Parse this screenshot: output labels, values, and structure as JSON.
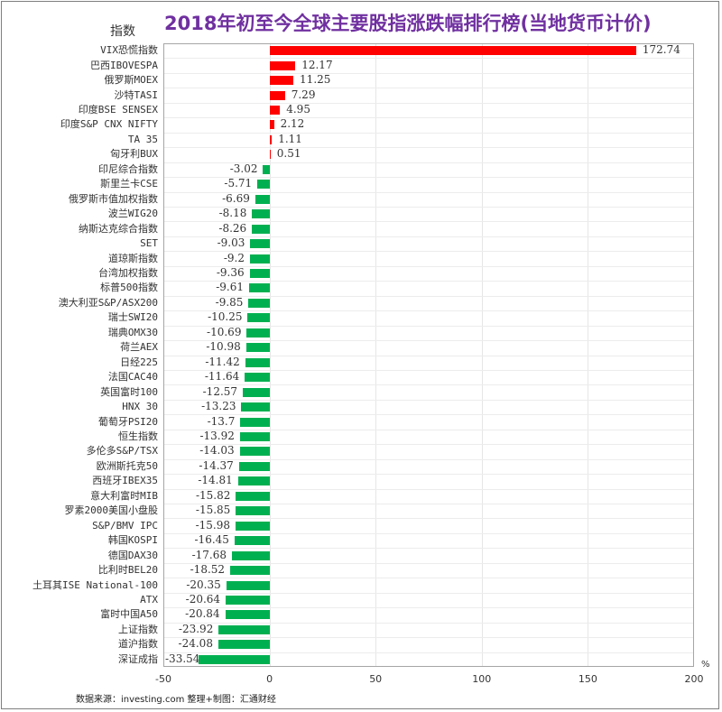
{
  "chart_data": {
    "type": "bar",
    "orientation": "horizontal",
    "title": "2018年初至今全球主要股指涨跌幅排行榜(当地货币计价)",
    "ylabel": "指数",
    "xlabel": "%",
    "xlim": [
      -50,
      200
    ],
    "xticks": [
      -50,
      0,
      50,
      100,
      150,
      200
    ],
    "grid": true,
    "legend": null,
    "colors": {
      "positive": "#ff0000",
      "negative": "#00b050"
    },
    "categories": [
      "VIX恐慌指数",
      "巴西IBOVESPA",
      "俄罗斯MOEX",
      "沙特TASI",
      "印度BSE SENSEX",
      "印度S&P CNX NIFTY",
      "TA 35",
      "匈牙利BUX",
      "印尼综合指数",
      "斯里兰卡CSE",
      "俄罗斯市值加权指数",
      "波兰WIG20",
      "纳斯达克综合指数",
      "SET",
      "道琼斯指数",
      "台湾加权指数",
      "标普500指数",
      "澳大利亚S&P/ASX200",
      "瑞士SWI20",
      "瑞典OMX30",
      "荷兰AEX",
      "日经225",
      "法国CAC40",
      "英国富时100",
      "HNX 30",
      "葡萄牙PSI20",
      "恒生指数",
      "多伦多S&P/TSX",
      "欧洲斯托克50",
      "西班牙IBEX35",
      "意大利富时MIB",
      "罗素2000美国小盘股",
      "S&P/BMV IPC",
      "韩国KOSPI",
      "德国DAX30",
      "比利时BEL20",
      "土耳其ISE National-100",
      "ATX",
      "富时中国A50",
      "上证指数",
      "道沪指数",
      "深证成指"
    ],
    "values": [
      172.74,
      12.17,
      11.25,
      7.29,
      4.95,
      2.12,
      1.11,
      0.51,
      -3.02,
      -5.71,
      -6.69,
      -8.18,
      -8.26,
      -9.03,
      -9.2,
      -9.36,
      -9.61,
      -9.85,
      -10.25,
      -10.69,
      -10.98,
      -11.42,
      -11.64,
      -12.57,
      -13.23,
      -13.7,
      -13.92,
      -14.03,
      -14.37,
      -14.81,
      -15.82,
      -15.85,
      -15.98,
      -16.45,
      -17.68,
      -18.52,
      -20.35,
      -20.64,
      -20.84,
      -23.92,
      -24.08,
      -33.54
    ],
    "value_labels": [
      "172.74",
      "12.17",
      "11.25",
      "7.29",
      "4.95",
      "2.12",
      "1.11",
      "0.51",
      "-3.02",
      "-5.71",
      "-6.69",
      "-8.18",
      "-8.26",
      "-9.03",
      "-9.2",
      "-9.36",
      "-9.61",
      "-9.85",
      "-10.25",
      "-10.69",
      "-10.98",
      "-11.42",
      "-11.64",
      "-12.57",
      "-13.23",
      "-13.7",
      "-13.92",
      "-14.03",
      "-14.37",
      "-14.81",
      "-15.82",
      "-15.85",
      "-15.98",
      "-16.45",
      "-17.68",
      "-18.52",
      "-20.35",
      "-20.64",
      "-20.84",
      "-23.92",
      "-24.08",
      "-33.54"
    ]
  },
  "header": {
    "title": "2018年初至今全球主要股指涨跌幅排行榜(当地货币计价)",
    "ylabel": "指数"
  },
  "axis": {
    "unit": "%",
    "ticks": [
      "-50",
      "0",
      "50",
      "100",
      "150",
      "200"
    ]
  },
  "footer": {
    "source": "数据来源：investing.com  整理+制图：汇通财经"
  }
}
